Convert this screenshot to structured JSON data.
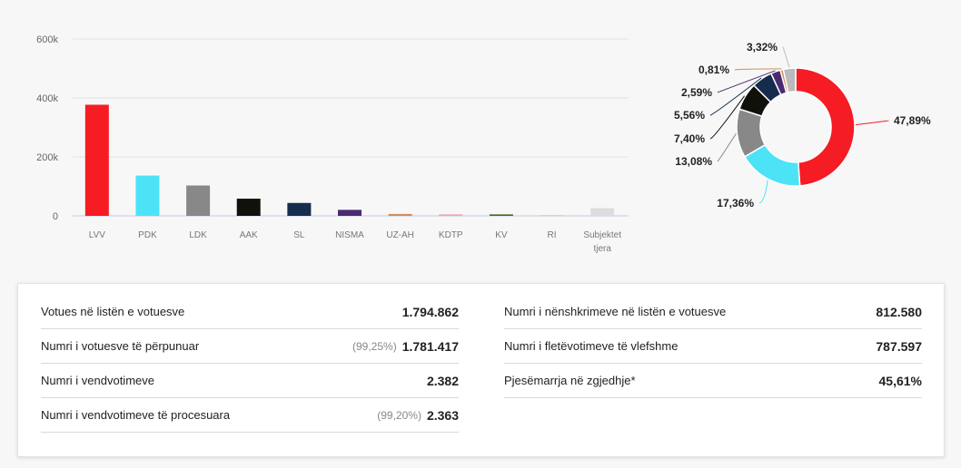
{
  "chart_data": [
    {
      "type": "bar",
      "categories": [
        "LVV",
        "PDK",
        "LDK",
        "AAK",
        "SL",
        "NISMA",
        "UZ-AH",
        "KDTP",
        "KV",
        "RI",
        "Subjektet tjera"
      ],
      "values": [
        377000,
        136700,
        103000,
        58300,
        43800,
        20400,
        6400,
        5100,
        5000,
        2400,
        26100
      ],
      "colors": [
        "#f51c24",
        "#4de3f7",
        "#888888",
        "#11110b",
        "#162c4d",
        "#4a2b73",
        "#cf8f52",
        "#f2a5b0",
        "#3d6b22",
        "#e6c79e",
        "#dddddd"
      ],
      "yticks": [
        "600k",
        "400k",
        "200k",
        "0"
      ],
      "ylim": [
        0,
        600000
      ],
      "grid": true
    },
    {
      "type": "pie",
      "style": "donut",
      "labels": [
        "47,89%",
        "17,36%",
        "13,08%",
        "7,40%",
        "5,56%",
        "2,59%",
        "0,81%",
        "3,32%"
      ],
      "values": [
        47.89,
        17.36,
        13.08,
        7.4,
        5.56,
        2.59,
        0.81,
        3.32
      ],
      "colors": [
        "#f51c24",
        "#4de3f7",
        "#888888",
        "#11110b",
        "#162c4d",
        "#4a2b73",
        "#cf8f52",
        "#bbbbbb"
      ]
    }
  ],
  "stats": {
    "left": [
      {
        "label": "Votues në listën e votuesve",
        "pct": "",
        "value": "1.794.862"
      },
      {
        "label": "Numri i votuesve të përpunuar",
        "pct": "(99,25%)",
        "value": "1.781.417"
      },
      {
        "label": "Numri i vendvotimeve",
        "pct": "",
        "value": "2.382"
      },
      {
        "label": "Numri i vendvotimeve të procesuara",
        "pct": "(99,20%)",
        "value": "2.363"
      }
    ],
    "right": [
      {
        "label": "Numri i nënshkrimeve në listën e votuesve",
        "pct": "",
        "value": "812.580"
      },
      {
        "label": "Numri i fletëvotimeve të vlefshme",
        "pct": "",
        "value": "787.597"
      },
      {
        "label": "Pjesëmarrja në zgjedhje*",
        "pct": "",
        "value": "45,61%"
      }
    ]
  }
}
